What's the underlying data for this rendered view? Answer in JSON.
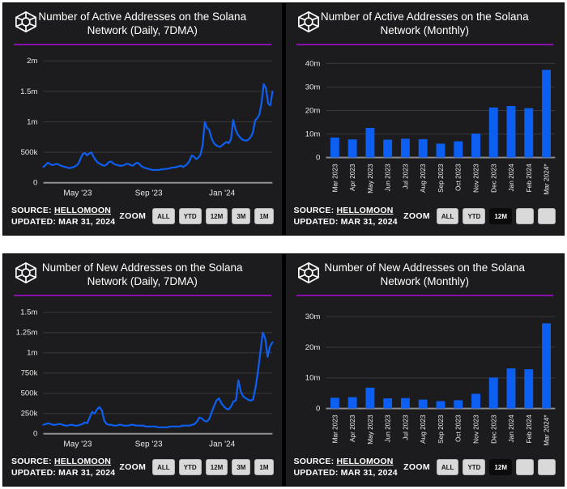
{
  "colors": {
    "blue": "#0d5ff2",
    "purple": "#8a10ad",
    "panel_bg": "#1c1c1e",
    "button_bg": "#d9d9d9",
    "button_selected_bg": "#0b0b0c"
  },
  "panels": [
    {
      "title": "Number of Active Addresses on the Solana Network (Daily, 7DMA)",
      "source_label": "SOURCE:",
      "source_value": "HELLOMOON",
      "updated": "UPDATED: MAR 31, 2024",
      "zoom_label": "ZOOM",
      "zoom_buttons": [
        {
          "label": "ALL",
          "selected": false
        },
        {
          "label": "YTD",
          "selected": false
        },
        {
          "label": "12M",
          "selected": false
        },
        {
          "label": "3M",
          "selected": false
        },
        {
          "label": "1M",
          "selected": false
        }
      ]
    },
    {
      "title": "Number of Active Addresses on the Solana Network (Monthly)",
      "source_label": "SOURCE:",
      "source_value": "HELLOMOON",
      "updated": "UPDATED: MAR 31, 2024",
      "zoom_label": "ZOOM",
      "zoom_buttons": [
        {
          "label": "ALL",
          "selected": false
        },
        {
          "label": "YTD",
          "selected": false
        },
        {
          "label": "12M",
          "selected": true
        },
        {
          "label": "",
          "selected": false
        },
        {
          "label": "",
          "selected": false
        }
      ]
    },
    {
      "title": "Number of New Addresses on the Solana Network (Daily, 7DMA)",
      "source_label": "SOURCE:",
      "source_value": "HELLOMOON",
      "updated": "UPDATED: MAR 31, 2024",
      "zoom_label": "ZOOM",
      "zoom_buttons": [
        {
          "label": "ALL",
          "selected": false
        },
        {
          "label": "YTD",
          "selected": false
        },
        {
          "label": "12M",
          "selected": false
        },
        {
          "label": "3M",
          "selected": false
        },
        {
          "label": "1M",
          "selected": false
        }
      ]
    },
    {
      "title": "Number of New Addresses on the Solana Network (Monthly)",
      "source_label": "SOURCE:",
      "source_value": "HELLOMOON",
      "updated": "UPDATED: MAR 31, 2024",
      "zoom_label": "ZOOM",
      "zoom_buttons": [
        {
          "label": "ALL",
          "selected": false
        },
        {
          "label": "YTD",
          "selected": false
        },
        {
          "label": "12M",
          "selected": true
        },
        {
          "label": "",
          "selected": false
        },
        {
          "label": "",
          "selected": false
        }
      ]
    }
  ],
  "chart_data": [
    {
      "type": "line",
      "title": "Number of Active Addresses on the Solana Network (Daily, 7DMA)",
      "unit": "millions of addresses",
      "ylim": [
        0,
        2.1
      ],
      "ytick_values": [
        2,
        1.5,
        1,
        0.5,
        0
      ],
      "ytick_labels": [
        "2m",
        "1.5m",
        "1m",
        "500k",
        "0"
      ],
      "xticks": [
        {
          "label": "May '23",
          "pos": 0.15
        },
        {
          "label": "Sep '23",
          "pos": 0.46
        },
        {
          "label": "Jan '24",
          "pos": 0.78
        }
      ],
      "x_range": [
        "Mar 2023",
        "Mar 2024"
      ],
      "values": [
        0.26,
        0.29,
        0.33,
        0.31,
        0.29,
        0.3,
        0.31,
        0.3,
        0.28,
        0.27,
        0.26,
        0.25,
        0.24,
        0.25,
        0.26,
        0.28,
        0.31,
        0.39,
        0.47,
        0.49,
        0.45,
        0.48,
        0.5,
        0.43,
        0.37,
        0.33,
        0.31,
        0.29,
        0.28,
        0.3,
        0.34,
        0.35,
        0.32,
        0.3,
        0.29,
        0.28,
        0.28,
        0.29,
        0.31,
        0.31,
        0.29,
        0.28,
        0.31,
        0.33,
        0.31,
        0.27,
        0.25,
        0.24,
        0.23,
        0.22,
        0.21,
        0.21,
        0.21,
        0.21,
        0.22,
        0.22,
        0.23,
        0.23,
        0.24,
        0.25,
        0.25,
        0.26,
        0.27,
        0.28,
        0.26,
        0.28,
        0.31,
        0.36,
        0.45,
        0.43,
        0.39,
        0.41,
        0.46,
        0.62,
        1.0,
        0.9,
        0.87,
        0.74,
        0.66,
        0.62,
        0.6,
        0.59,
        0.62,
        0.65,
        0.67,
        0.65,
        0.72,
        1.03,
        0.88,
        0.8,
        0.75,
        0.71,
        0.7,
        0.69,
        0.71,
        0.75,
        0.82,
        1.02,
        1.06,
        1.12,
        1.32,
        1.62,
        1.55,
        1.3,
        1.27,
        1.5
      ]
    },
    {
      "type": "bar",
      "title": "Number of Active Addresses on the Solana Network (Monthly)",
      "unit": "millions of addresses",
      "ylim": [
        0,
        43
      ],
      "ytick_values": [
        40,
        30,
        20,
        10,
        0
      ],
      "ytick_labels": [
        "40m",
        "30m",
        "20m",
        "10m",
        "0"
      ],
      "categories": [
        "Mar 2023",
        "Apr 2023",
        "May 2023",
        "Jun 2023",
        "Jul 2023",
        "Aug 2023",
        "Sep 2023",
        "Oct 2023",
        "Nov 2023",
        "Dec 2023",
        "Jan 2024",
        "Feb 2024",
        "Mar 2024*"
      ],
      "values": [
        8.5,
        7.7,
        12.6,
        7.6,
        8.0,
        7.8,
        5.9,
        6.9,
        10.2,
        21.3,
        21.9,
        21.0,
        37.3
      ]
    },
    {
      "type": "line",
      "title": "Number of New Addresses on the Solana Network (Daily, 7DMA)",
      "unit": "millions of addresses",
      "ylim": [
        0,
        1.58
      ],
      "ytick_values": [
        1.5,
        1.25,
        1,
        0.75,
        0.5,
        0.25,
        0
      ],
      "ytick_labels": [
        "1.5m",
        "1.25m",
        "1m",
        "750k",
        "500k",
        "250k",
        "0"
      ],
      "xticks": [
        {
          "label": "May '23",
          "pos": 0.15
        },
        {
          "label": "Sep '23",
          "pos": 0.46
        },
        {
          "label": "Jan '24",
          "pos": 0.78
        }
      ],
      "x_range": [
        "Mar 2023",
        "Mar 2024"
      ],
      "values": [
        0.11,
        0.12,
        0.13,
        0.12,
        0.11,
        0.11,
        0.12,
        0.12,
        0.11,
        0.1,
        0.1,
        0.11,
        0.11,
        0.1,
        0.1,
        0.11,
        0.12,
        0.14,
        0.13,
        0.2,
        0.27,
        0.25,
        0.3,
        0.33,
        0.29,
        0.16,
        0.12,
        0.11,
        0.11,
        0.1,
        0.1,
        0.11,
        0.11,
        0.1,
        0.1,
        0.1,
        0.11,
        0.11,
        0.1,
        0.1,
        0.1,
        0.1,
        0.09,
        0.09,
        0.09,
        0.09,
        0.09,
        0.08,
        0.08,
        0.08,
        0.08,
        0.08,
        0.09,
        0.09,
        0.09,
        0.09,
        0.09,
        0.1,
        0.1,
        0.1,
        0.1,
        0.11,
        0.12,
        0.15,
        0.2,
        0.19,
        0.16,
        0.15,
        0.18,
        0.26,
        0.34,
        0.41,
        0.44,
        0.38,
        0.34,
        0.31,
        0.3,
        0.34,
        0.4,
        0.41,
        0.66,
        0.52,
        0.46,
        0.44,
        0.42,
        0.41,
        0.42,
        0.56,
        0.76,
        1.0,
        1.25,
        1.18,
        0.95,
        1.08,
        1.13
      ]
    },
    {
      "type": "bar",
      "title": "Number of New Addresses on the Solana Network (Monthly)",
      "unit": "millions of addresses",
      "ylim": [
        0,
        33
      ],
      "ytick_values": [
        30,
        20,
        10,
        0
      ],
      "ytick_labels": [
        "30m",
        "20m",
        "10m",
        "0"
      ],
      "categories": [
        "Mar 2023",
        "Apr 2023",
        "May 2023",
        "Jun 2023",
        "Jul 2023",
        "Aug 2023",
        "Sep 2023",
        "Oct 2023",
        "Nov 2023",
        "Dec 2023",
        "Jan 2024",
        "Feb 2024",
        "Mar 2024*"
      ],
      "values": [
        3.5,
        3.7,
        6.8,
        3.3,
        3.4,
        2.9,
        2.4,
        2.7,
        4.8,
        10.1,
        13.1,
        12.8,
        27.8
      ]
    }
  ]
}
